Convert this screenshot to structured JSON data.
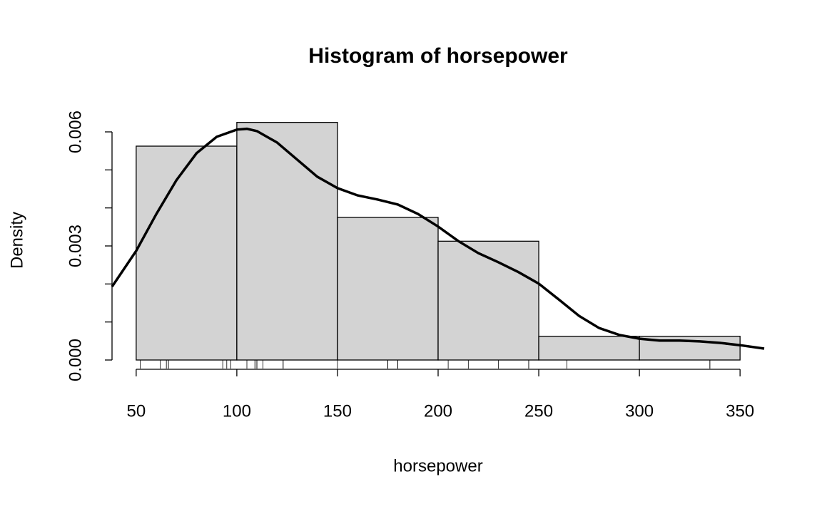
{
  "chart_data": {
    "type": "histogram",
    "title": "Histogram of horsepower",
    "xlabel": "horsepower",
    "ylabel": "Density",
    "bins": [
      50,
      100,
      150,
      200,
      250,
      300,
      350
    ],
    "values": [
      0.005625,
      0.00625,
      0.00375,
      0.003125,
      0.000625,
      0.000625
    ],
    "color": "#d3d3d3",
    "xlim": [
      38,
      362
    ],
    "ylim": [
      0,
      0.006
    ],
    "xticks": [
      50,
      100,
      150,
      200,
      250,
      300,
      350
    ],
    "yticks": [
      {
        "value": 0,
        "label": "0.000"
      },
      {
        "value": 0.003,
        "label": "0.003"
      },
      {
        "value": 0.006,
        "label": "0.006"
      }
    ],
    "yminor_ticks": [
      0.001,
      0.002,
      0.004,
      0.005
    ],
    "rug": [
      110,
      110,
      93,
      110,
      175,
      105,
      245,
      62,
      95,
      123,
      123,
      180,
      180,
      180,
      205,
      215,
      230,
      66,
      52,
      65,
      97,
      150,
      109,
      175,
      335,
      245,
      66,
      264,
      175,
      335,
      109,
      113
    ],
    "density": {
      "x": [
        38,
        50,
        60,
        70,
        80,
        90,
        100,
        105,
        110,
        120,
        130,
        140,
        150,
        160,
        170,
        180,
        190,
        200,
        210,
        220,
        230,
        240,
        250,
        260,
        270,
        280,
        290,
        300,
        310,
        320,
        330,
        340,
        350,
        362
      ],
      "values": [
        0.00193,
        0.00287,
        0.00384,
        0.00473,
        0.00544,
        0.00587,
        0.00606,
        0.00608,
        0.00602,
        0.00572,
        0.00527,
        0.00482,
        0.00452,
        0.00433,
        0.00422,
        0.00409,
        0.00384,
        0.00351,
        0.00313,
        0.00281,
        0.00257,
        0.00231,
        0.00201,
        0.00159,
        0.00116,
        0.00084,
        0.00066,
        0.00056,
        0.00051,
        0.00051,
        0.00049,
        0.00045,
        0.00039,
        0.0003
      ]
    }
  }
}
